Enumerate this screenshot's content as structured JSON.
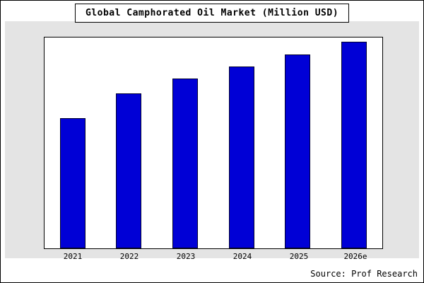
{
  "chart_data": {
    "type": "bar",
    "title": "Global Camphorated Oil Market (Million USD)",
    "categories": [
      "2021",
      "2022",
      "2023",
      "2024",
      "2025",
      "2026e"
    ],
    "values": [
      63,
      75,
      82,
      88,
      94,
      100
    ],
    "xlabel": "",
    "ylabel": "",
    "ylim": [
      0,
      100
    ],
    "grid": false,
    "legend": false,
    "bar_color": "#0000D6",
    "bar_border_color": "#000030"
  },
  "source": "Source: Prof Research",
  "colors": {
    "panel_background": "#e4e4e4",
    "plot_background": "#ffffff",
    "frame_border": "#000000"
  }
}
